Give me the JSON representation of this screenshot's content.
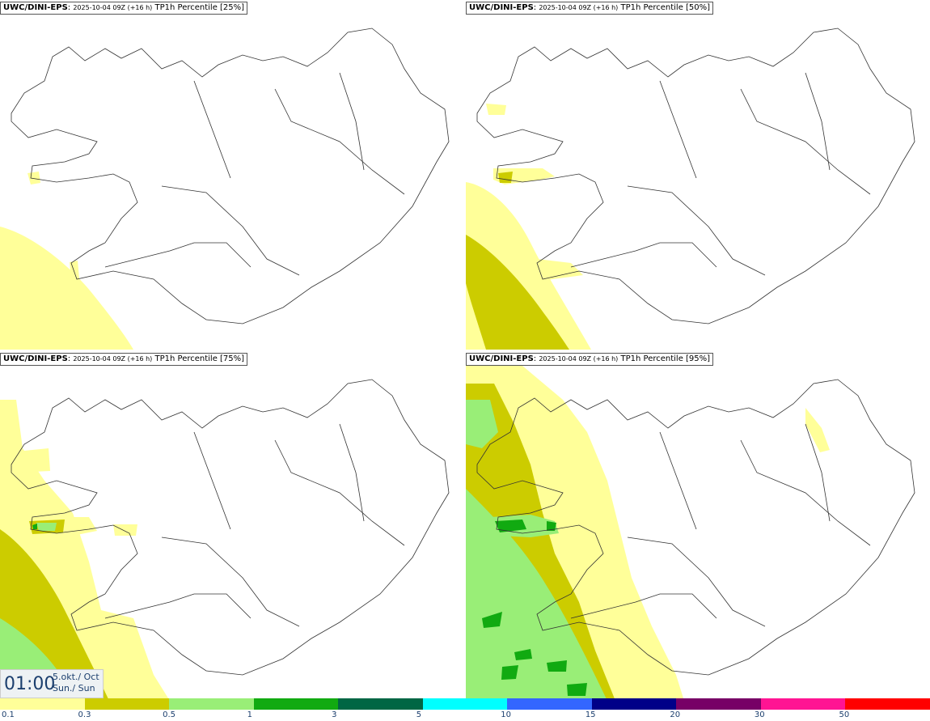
{
  "panels": [
    {
      "source": "UWC/DINI-EPS",
      "run": "2025-10-04 09Z (+16 h)",
      "field": "TP1h Percentile [25%]"
    },
    {
      "source": "UWC/DINI-EPS",
      "run": "2025-10-04 09Z (+16 h)",
      "field": "TP1h Percentile [50%]"
    },
    {
      "source": "UWC/DINI-EPS",
      "run": "2025-10-04 09Z (+16 h)",
      "field": "TP1h Percentile [75%]"
    },
    {
      "source": "UWC/DINI-EPS",
      "run": "2025-10-04 09Z (+16 h)",
      "field": "TP1h Percentile [95%]"
    }
  ],
  "time_display": {
    "clock": "01:00",
    "date_line1": "5.okt./ Oct",
    "date_line2": "Sun./ Sun"
  },
  "legend": {
    "colors": [
      "#ffff99",
      "#cccc00",
      "#99ee77",
      "#11aa11",
      "#006644",
      "#00ffff",
      "#3366ff",
      "#000088",
      "#770066",
      "#ff1493",
      "#ff0000"
    ],
    "ticks": [
      "0.1",
      "0.3",
      "0.5",
      "1",
      "3",
      "5",
      "10",
      "15",
      "20",
      "30",
      "50"
    ]
  }
}
